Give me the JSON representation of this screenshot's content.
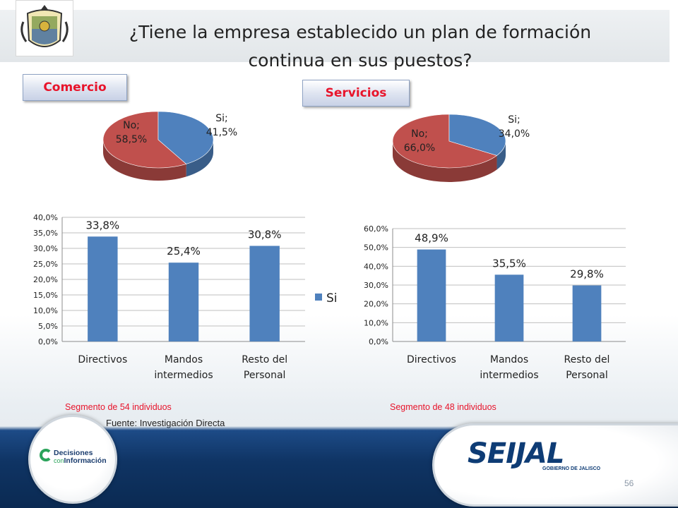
{
  "slide": {
    "title_line1": "¿Tiene la empresa establecido un plan de formación",
    "title_line2": "continua en sus puestos?",
    "page_number": "56"
  },
  "tags": {
    "comercio": "Comercio",
    "servicios": "Servicios"
  },
  "segments": {
    "comercio": "Segmento de 54 individuos",
    "servicios": "Segmento de 48 individuos"
  },
  "source": "Fuente: Investigación Directa",
  "logos": {
    "decisiones_line1": "Decisiones",
    "decisiones_small": "con",
    "decisiones_line2": "Información",
    "seijal_main": "SEIJAL",
    "seijal_sub": "GOBIERNO DE JALISCO"
  },
  "colors": {
    "si": "#4f81bd",
    "no": "#c0504d",
    "accent_red": "#e8142b",
    "footer_blue": "#0f3464"
  },
  "chart_data": [
    {
      "type": "pie",
      "group": "Comercio",
      "slices": [
        {
          "name": "Si",
          "value": 41.5,
          "label": "Si;",
          "value_label": "41,5%"
        },
        {
          "name": "No",
          "value": 58.5,
          "label": "No;",
          "value_label": "58,5%"
        }
      ]
    },
    {
      "type": "pie",
      "group": "Servicios",
      "slices": [
        {
          "name": "Si",
          "value": 34.0,
          "label": "Si;",
          "value_label": "34,0%"
        },
        {
          "name": "No",
          "value": 66.0,
          "label": "No;",
          "value_label": "66,0%"
        }
      ]
    },
    {
      "type": "bar",
      "group": "Comercio",
      "categories": [
        [
          "Directivos"
        ],
        [
          "Mandos",
          "intermedios"
        ],
        [
          "Resto del",
          "Personal"
        ]
      ],
      "series": [
        {
          "name": "Si",
          "values": [
            33.8,
            25.4,
            30.8
          ],
          "labels": [
            "33,8%",
            "25,4%",
            "30,8%"
          ]
        }
      ],
      "ylim": [
        0,
        40
      ],
      "ytick_labels": [
        "0,0%",
        "5,0%",
        "10,0%",
        "15,0%",
        "20,0%",
        "25,0%",
        "30,0%",
        "35,0%",
        "40,0%"
      ],
      "legend": "right",
      "grid": true
    },
    {
      "type": "bar",
      "group": "Servicios",
      "categories": [
        [
          "Directivos"
        ],
        [
          "Mandos",
          "intermedios"
        ],
        [
          "Resto del",
          "Personal"
        ]
      ],
      "series": [
        {
          "name": "Si",
          "values": [
            48.9,
            35.5,
            29.8
          ],
          "labels": [
            "48,9%",
            "35,5%",
            "29,8%"
          ]
        }
      ],
      "ylim": [
        0,
        60
      ],
      "ytick_labels": [
        "0,0%",
        "10,0%",
        "20,0%",
        "30,0%",
        "40,0%",
        "50,0%",
        "60,0%"
      ],
      "legend": "none",
      "grid": true
    }
  ]
}
